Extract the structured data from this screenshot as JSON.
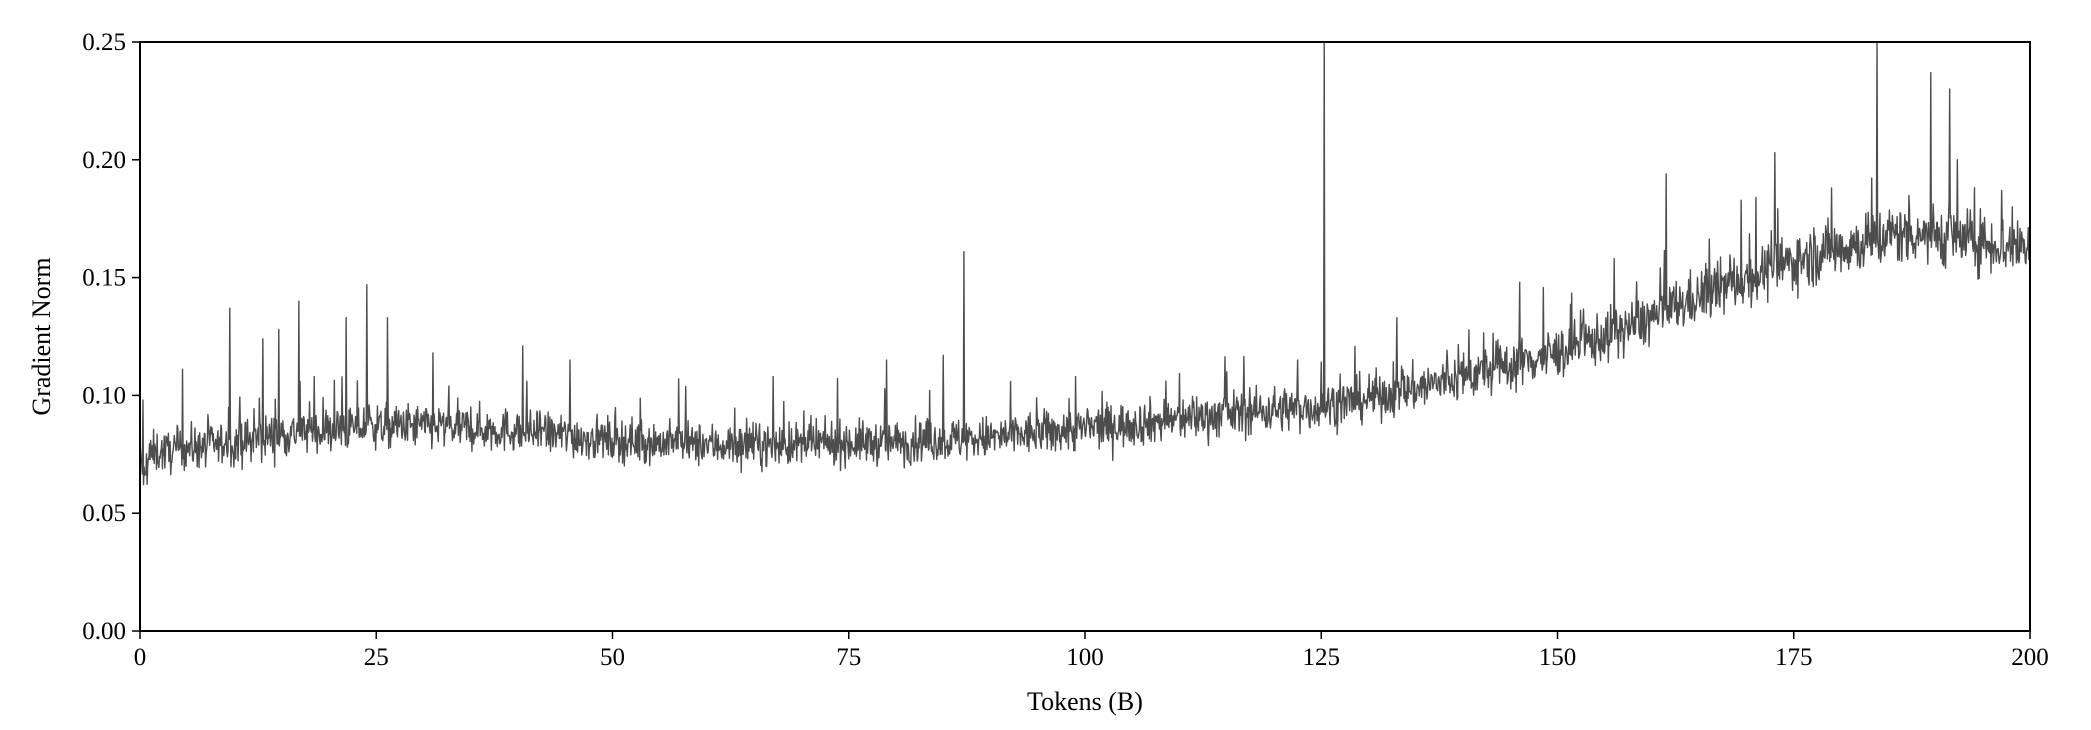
{
  "chart_data": {
    "type": "line",
    "title": "",
    "xlabel": "Tokens (B)",
    "ylabel": "Gradient Norm",
    "xlim": [
      0,
      200
    ],
    "ylim": [
      0,
      0.25
    ],
    "xticks": [
      0,
      25,
      50,
      75,
      100,
      125,
      150,
      175,
      200
    ],
    "yticks": [
      0.0,
      0.05,
      0.1,
      0.15,
      0.2,
      0.25
    ],
    "xtick_labels": [
      "0",
      "25",
      "50",
      "75",
      "100",
      "125",
      "150",
      "175",
      "200"
    ],
    "ytick_labels": [
      "0.00",
      "0.05",
      "0.10",
      "0.15",
      "0.20",
      "0.25"
    ],
    "grid": false,
    "legend": "none",
    "line_color": "#4d4d4d",
    "series": [
      {
        "x": [
          0,
          0.5,
          1,
          2,
          3,
          4,
          5,
          6,
          8,
          10,
          12,
          14,
          16,
          18,
          20,
          22,
          24,
          26,
          28,
          30,
          35,
          40,
          45,
          50,
          55,
          60,
          65,
          70,
          75,
          80,
          85,
          90,
          95,
          100,
          105,
          110,
          115,
          120,
          125,
          130,
          135,
          140,
          145,
          150,
          155,
          160,
          165,
          170,
          175,
          180,
          183,
          185,
          188,
          190,
          192,
          195,
          198,
          200
        ],
        "values": [
          0.075,
          0.063,
          0.075,
          0.076,
          0.076,
          0.077,
          0.078,
          0.078,
          0.079,
          0.08,
          0.081,
          0.083,
          0.084,
          0.085,
          0.085,
          0.086,
          0.087,
          0.087,
          0.087,
          0.087,
          0.086,
          0.085,
          0.083,
          0.081,
          0.08,
          0.079,
          0.079,
          0.079,
          0.08,
          0.08,
          0.081,
          0.082,
          0.084,
          0.086,
          0.088,
          0.09,
          0.092,
          0.094,
          0.095,
          0.099,
          0.103,
          0.108,
          0.113,
          0.118,
          0.125,
          0.133,
          0.142,
          0.15,
          0.157,
          0.163,
          0.165,
          0.168,
          0.169,
          0.168,
          0.167,
          0.165,
          0.163,
          0.164
        ],
        "spikes": [
          {
            "x": 0.3,
            "y": 0.098
          },
          {
            "x": 4.5,
            "y": 0.111
          },
          {
            "x": 9.5,
            "y": 0.137
          },
          {
            "x": 13,
            "y": 0.124
          },
          {
            "x": 14.7,
            "y": 0.128
          },
          {
            "x": 16.8,
            "y": 0.14
          },
          {
            "x": 21.8,
            "y": 0.133
          },
          {
            "x": 24,
            "y": 0.147
          },
          {
            "x": 26.2,
            "y": 0.133
          },
          {
            "x": 31,
            "y": 0.118
          },
          {
            "x": 40.5,
            "y": 0.121
          },
          {
            "x": 45.5,
            "y": 0.115
          },
          {
            "x": 57,
            "y": 0.107
          },
          {
            "x": 67,
            "y": 0.108
          },
          {
            "x": 79,
            "y": 0.115
          },
          {
            "x": 85,
            "y": 0.117
          },
          {
            "x": 87.2,
            "y": 0.161
          },
          {
            "x": 99,
            "y": 0.108
          },
          {
            "x": 115,
            "y": 0.11
          },
          {
            "x": 122.5,
            "y": 0.115
          },
          {
            "x": 125.3,
            "y": 0.25
          },
          {
            "x": 133,
            "y": 0.133
          },
          {
            "x": 146,
            "y": 0.148
          },
          {
            "x": 156,
            "y": 0.158
          },
          {
            "x": 161.5,
            "y": 0.194
          },
          {
            "x": 171,
            "y": 0.184
          },
          {
            "x": 173,
            "y": 0.203
          },
          {
            "x": 179,
            "y": 0.188
          },
          {
            "x": 183.8,
            "y": 0.25
          },
          {
            "x": 189.5,
            "y": 0.237
          },
          {
            "x": 191.5,
            "y": 0.23
          },
          {
            "x": 192.3,
            "y": 0.2
          },
          {
            "x": 197,
            "y": 0.187
          }
        ]
      }
    ]
  }
}
